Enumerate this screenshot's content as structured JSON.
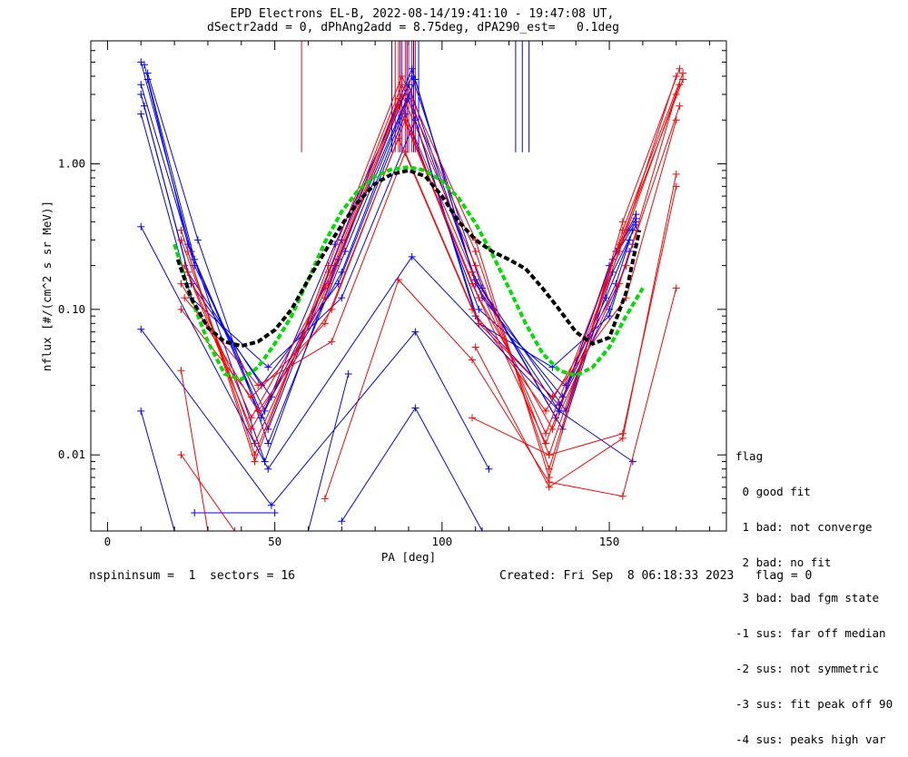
{
  "title": {
    "line1": "EPD Electrons EL-B, 2022-08-14/19:41:10 - 19:47:08 UT,",
    "line2": "dSectr2add = 0, dPhAng2add = 8.75deg, dPA290_est=   0.1deg"
  },
  "legend": {
    "heading": "flag",
    "items": [
      " 0 good fit",
      " 1 bad: not converge",
      " 2 bad: no fit",
      " 3 bad: bad fgm state",
      "-1 sus: far off median",
      "-2 sus: not symmetric",
      "-3 sus: fit peak off 90",
      "-4 sus: peaks high var"
    ]
  },
  "footer": {
    "left": "nspininsum =  1  sectors = 16",
    "right": "Created: Fri Sep  8 06:18:33 2023   flag = 0"
  },
  "colors": {
    "red": "#ff0000",
    "blue": "#0000ff",
    "green": "#00e000",
    "black": "#000000"
  },
  "chart_data": {
    "type": "line",
    "xlabel": "PA [deg]",
    "ylabel": "nflux [#/(cm^2 s sr MeV)]",
    "xlim": [
      -5,
      185
    ],
    "ylim": [
      0.003,
      7
    ],
    "yscale": "log",
    "x_ticks": [
      0,
      50,
      100,
      150
    ],
    "y_ticks": [
      0.01,
      0.1,
      1.0
    ],
    "y_ticklabels": [
      "0.01",
      "0.10",
      "1.00"
    ],
    "series": [
      {
        "color": "blue",
        "x": [
          10,
          25,
          48,
          70,
          91,
          110,
          135,
          150,
          158
        ],
        "y": [
          5.0,
          0.25,
          0.015,
          0.3,
          4.5,
          0.15,
          0.02,
          0.2,
          0.4
        ]
      },
      {
        "color": "blue",
        "x": [
          10,
          26,
          47,
          68,
          90,
          112,
          136,
          152,
          157
        ],
        "y": [
          3.5,
          0.2,
          0.02,
          0.2,
          3.0,
          0.12,
          0.025,
          0.15,
          0.35
        ]
      },
      {
        "color": "blue",
        "x": [
          11,
          24,
          46,
          69,
          89,
          111,
          137,
          149,
          156
        ],
        "y": [
          2.5,
          0.18,
          0.03,
          0.15,
          2.2,
          0.1,
          0.03,
          0.12,
          0.3
        ]
      },
      {
        "color": "blue",
        "x": [
          12,
          27,
          48,
          71,
          92,
          109,
          134,
          151,
          158
        ],
        "y": [
          4.2,
          0.3,
          0.012,
          0.25,
          3.8,
          0.18,
          0.018,
          0.22,
          0.45
        ]
      },
      {
        "color": "blue",
        "x": [
          10,
          25,
          49,
          70,
          90,
          110,
          135,
          150,
          157
        ],
        "y": [
          3.0,
          0.15,
          0.025,
          0.18,
          2.8,
          0.09,
          0.022,
          0.1,
          0.28
        ]
      },
      {
        "color": "blue",
        "x": [
          11,
          26,
          47,
          69,
          91,
          112,
          136,
          151,
          158
        ],
        "y": [
          4.8,
          0.22,
          0.009,
          0.22,
          4.0,
          0.14,
          0.015,
          0.18,
          0.38
        ]
      },
      {
        "color": "blue",
        "x": [
          10,
          25,
          48,
          70,
          92,
          111,
          133,
          150,
          156
        ],
        "y": [
          2.2,
          0.12,
          0.04,
          0.12,
          2.0,
          0.08,
          0.04,
          0.09,
          0.25
        ]
      },
      {
        "color": "blue",
        "x": [
          12,
          24,
          46,
          68,
          90,
          110,
          137,
          152,
          158
        ],
        "y": [
          3.8,
          0.28,
          0.018,
          0.28,
          3.5,
          0.16,
          0.02,
          0.25,
          0.42
        ]
      },
      {
        "color": "red",
        "x": [
          22,
          44,
          66,
          88,
          110,
          132,
          154,
          170
        ],
        "y": [
          0.3,
          0.012,
          0.15,
          3.0,
          0.2,
          0.01,
          0.3,
          4.0
        ]
      },
      {
        "color": "red",
        "x": [
          23,
          43,
          65,
          87,
          109,
          131,
          153,
          171
        ],
        "y": [
          0.2,
          0.015,
          0.12,
          2.5,
          0.15,
          0.012,
          0.25,
          3.5
        ]
      },
      {
        "color": "red",
        "x": [
          22,
          45,
          67,
          89,
          111,
          133,
          155,
          170
        ],
        "y": [
          0.15,
          0.02,
          0.1,
          2.0,
          0.12,
          0.015,
          0.2,
          3.0
        ]
      },
      {
        "color": "red",
        "x": [
          24,
          44,
          66,
          88,
          110,
          132,
          154,
          172
        ],
        "y": [
          0.25,
          0.01,
          0.18,
          3.5,
          0.25,
          0.008,
          0.35,
          4.2
        ]
      },
      {
        "color": "red",
        "x": [
          22,
          43,
          65,
          87,
          109,
          131,
          153,
          171
        ],
        "y": [
          0.1,
          0.025,
          0.08,
          1.5,
          0.1,
          0.02,
          0.15,
          2.5
        ]
      },
      {
        "color": "red",
        "x": [
          23,
          45,
          67,
          89,
          111,
          133,
          155,
          170
        ],
        "y": [
          0.12,
          0.03,
          0.06,
          1.2,
          0.08,
          0.025,
          0.12,
          2.0
        ]
      },
      {
        "color": "red",
        "x": [
          22,
          44,
          66,
          88,
          110,
          132,
          154,
          171
        ],
        "y": [
          0.35,
          0.009,
          0.2,
          4.0,
          0.3,
          0.007,
          0.4,
          4.5
        ]
      },
      {
        "color": "red",
        "x": [
          24,
          43,
          65,
          87,
          109,
          131,
          153,
          172
        ],
        "y": [
          0.18,
          0.018,
          0.14,
          2.8,
          0.18,
          0.014,
          0.28,
          3.8
        ]
      },
      {
        "color": "blue",
        "x": [
          10,
          48,
          91,
          135,
          157
        ],
        "y": [
          0.37,
          0.008,
          0.23,
          0.02,
          0.009
        ]
      },
      {
        "color": "blue",
        "x": [
          10,
          49,
          92,
          114
        ],
        "y": [
          0.073,
          0.0045,
          0.07,
          0.008
        ]
      },
      {
        "color": "blue",
        "x": [
          10,
          20
        ],
        "y": [
          0.02,
          0.003
        ]
      },
      {
        "color": "blue",
        "x": [
          26,
          50
        ],
        "y": [
          0.004,
          0.004
        ]
      },
      {
        "color": "blue",
        "x": [
          70,
          92,
          112
        ],
        "y": [
          0.0035,
          0.021,
          0.003
        ]
      },
      {
        "color": "blue",
        "x": [
          60,
          72
        ],
        "y": [
          0.003,
          0.036
        ]
      },
      {
        "color": "red",
        "x": [
          22,
          38
        ],
        "y": [
          0.01,
          0.003
        ]
      },
      {
        "color": "red",
        "x": [
          65,
          87,
          109,
          132,
          154,
          170
        ],
        "y": [
          0.005,
          0.16,
          0.045,
          0.0065,
          0.0052,
          0.14
        ]
      },
      {
        "color": "red",
        "x": [
          22,
          30
        ],
        "y": [
          0.038,
          0.003
        ]
      },
      {
        "color": "red",
        "x": [
          109,
          132,
          154,
          170
        ],
        "y": [
          0.018,
          0.01,
          0.014,
          0.7
        ]
      },
      {
        "color": "red",
        "x": [
          110,
          132,
          154,
          170
        ],
        "y": [
          0.055,
          0.006,
          0.013,
          0.85
        ]
      },
      {
        "color": "green",
        "dashed": true,
        "x": [
          20,
          25,
          30,
          35,
          40,
          45,
          50,
          55,
          60,
          65,
          70,
          75,
          80,
          85,
          90,
          95,
          100,
          105,
          110,
          115,
          120,
          125,
          130,
          135,
          140,
          145,
          150,
          155,
          160
        ],
        "y": [
          0.28,
          0.12,
          0.06,
          0.036,
          0.033,
          0.04,
          0.058,
          0.09,
          0.16,
          0.29,
          0.47,
          0.66,
          0.82,
          0.92,
          0.95,
          0.9,
          0.76,
          0.58,
          0.39,
          0.24,
          0.14,
          0.08,
          0.05,
          0.038,
          0.035,
          0.04,
          0.055,
          0.09,
          0.14
        ]
      },
      {
        "color": "black",
        "dashed": true,
        "x": [
          21,
          25,
          30,
          35,
          40,
          45,
          50,
          55,
          60,
          65,
          70,
          75,
          80,
          85,
          90,
          95,
          100,
          105,
          110,
          115,
          120,
          125,
          130,
          135,
          140,
          145,
          150,
          155,
          159
        ],
        "y": [
          0.22,
          0.12,
          0.075,
          0.06,
          0.056,
          0.06,
          0.072,
          0.1,
          0.16,
          0.25,
          0.38,
          0.55,
          0.73,
          0.85,
          0.9,
          0.82,
          0.6,
          0.4,
          0.3,
          0.25,
          0.22,
          0.19,
          0.14,
          0.1,
          0.07,
          0.058,
          0.064,
          0.13,
          0.35
        ]
      }
    ],
    "vertical_lines": [
      {
        "color": "red",
        "x": 58,
        "y_from": 1.2,
        "y_to": 7
      },
      {
        "color": "red",
        "x": 86,
        "y_from": 1.2,
        "y_to": 7
      },
      {
        "color": "red",
        "x": 87,
        "y_from": 1.2,
        "y_to": 7
      },
      {
        "color": "red",
        "x": 88,
        "y_from": 1.2,
        "y_to": 7
      },
      {
        "color": "red",
        "x": 89,
        "y_from": 1.2,
        "y_to": 7
      },
      {
        "color": "red",
        "x": 90,
        "y_from": 1.2,
        "y_to": 7
      },
      {
        "color": "red",
        "x": 91,
        "y_from": 1.2,
        "y_to": 7
      },
      {
        "color": "red",
        "x": 92,
        "y_from": 1.2,
        "y_to": 7
      },
      {
        "color": "blue",
        "x": 85,
        "y_from": 1.2,
        "y_to": 7
      },
      {
        "color": "blue",
        "x": 87.5,
        "y_from": 1.2,
        "y_to": 7
      },
      {
        "color": "blue",
        "x": 89.5,
        "y_from": 1.2,
        "y_to": 7
      },
      {
        "color": "blue",
        "x": 91.5,
        "y_from": 1.2,
        "y_to": 7
      },
      {
        "color": "blue",
        "x": 93,
        "y_from": 1.2,
        "y_to": 7
      },
      {
        "color": "blue",
        "x": 122,
        "y_from": 1.2,
        "y_to": 7
      },
      {
        "color": "blue",
        "x": 124,
        "y_from": 1.2,
        "y_to": 7
      },
      {
        "color": "blue",
        "x": 126,
        "y_from": 1.2,
        "y_to": 7
      }
    ]
  }
}
